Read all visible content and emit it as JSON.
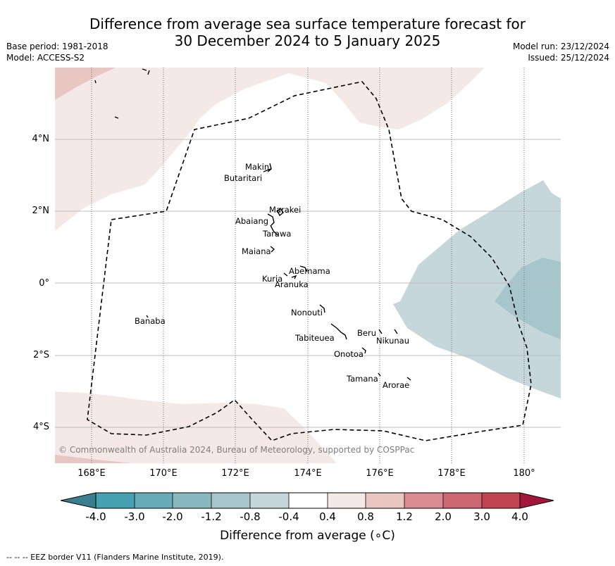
{
  "title": {
    "line1": "Difference from average sea surface temperature forecast for",
    "line2": "30 December 2024 to 5 January 2025"
  },
  "meta": {
    "base_period": "Base period: 1981-2018",
    "model": "Model: ACCESS-S2",
    "model_run": "Model run: 23/12/2024",
    "issued": "Issued: 25/12/2024"
  },
  "map": {
    "latitude_labels": [
      "4°N",
      "2°N",
      "0°",
      "2°S",
      "4°S"
    ],
    "longitude_labels": [
      "168°E",
      "170°E",
      "172°E",
      "174°E",
      "176°E",
      "178°E",
      "180°"
    ],
    "places": [
      "Makin",
      "Butaritari",
      "Marakei",
      "Abaiang",
      "Tarawa",
      "Maiana",
      "Abemama",
      "Kuria",
      "Aranuka",
      "Banaba",
      "Nonouti",
      "Tabiteuea",
      "Beru",
      "Nikunau",
      "Onotoa",
      "Tamana",
      "Arorae"
    ],
    "copyright": "© Commonwealth of Australia 2024, Bureau of Meteorology, supported by COSPPac",
    "eez_border_style": "dashed black line"
  },
  "colorbar": {
    "ticks": [
      "-4.0",
      "-3.0",
      "-2.0",
      "-1.2",
      "-0.8",
      "-0.4",
      "0.4",
      "0.8",
      "1.2",
      "2.0",
      "3.0",
      "4.0"
    ],
    "colors": [
      "#3a7f8f",
      "#45a0b0",
      "#67acb8",
      "#88b8c0",
      "#a6c6cb",
      "#c6d7dc",
      "#ffffff",
      "#f5e9e7",
      "#e8c6c1",
      "#d98b90",
      "#cc6670",
      "#c24453",
      "#a3163a"
    ],
    "label": "Difference from average (∘C)"
  },
  "footnote": "-- -- -- EEZ border V11 (Flanders Marine Institute, 2019)."
}
